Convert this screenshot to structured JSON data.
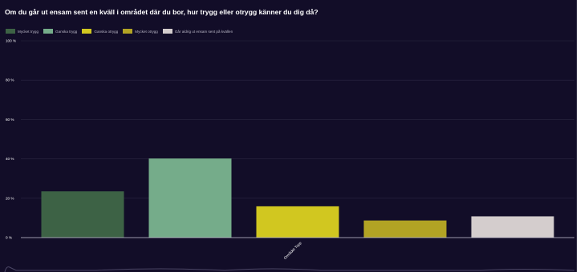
{
  "colors": {
    "background": "#120d28",
    "gridline": "#2c2843",
    "axis": "#c8c6d6",
    "navigator_line": "#4c4766"
  },
  "chart_data": {
    "type": "bar",
    "title": "Om du går ut ensam sent en kväll i området där du bor, hur trygg eller otrygg känner du dig då?",
    "categories": [
      "Området Topp"
    ],
    "ylim": [
      0,
      100
    ],
    "yticks": [
      "0 %",
      "20 %",
      "40 %",
      "60 %",
      "80 %",
      "100 %"
    ],
    "grid": true,
    "legend_position": "top-left",
    "series": [
      {
        "name": "Mycket trygg",
        "values": [
          23.5
        ],
        "color": "#3d6245"
      },
      {
        "name": "Ganska trygg",
        "values": [
          40.2
        ],
        "color": "#75ac8a"
      },
      {
        "name": "Ganska otrygg",
        "values": [
          15.9
        ],
        "color": "#d1c720"
      },
      {
        "name": "Mycket otrygg",
        "values": [
          8.7
        ],
        "color": "#b2a324"
      },
      {
        "name": "Går aldrig ut ensam sent på kvällen",
        "values": [
          10.8
        ],
        "color": "#d4cdcd"
      }
    ]
  }
}
